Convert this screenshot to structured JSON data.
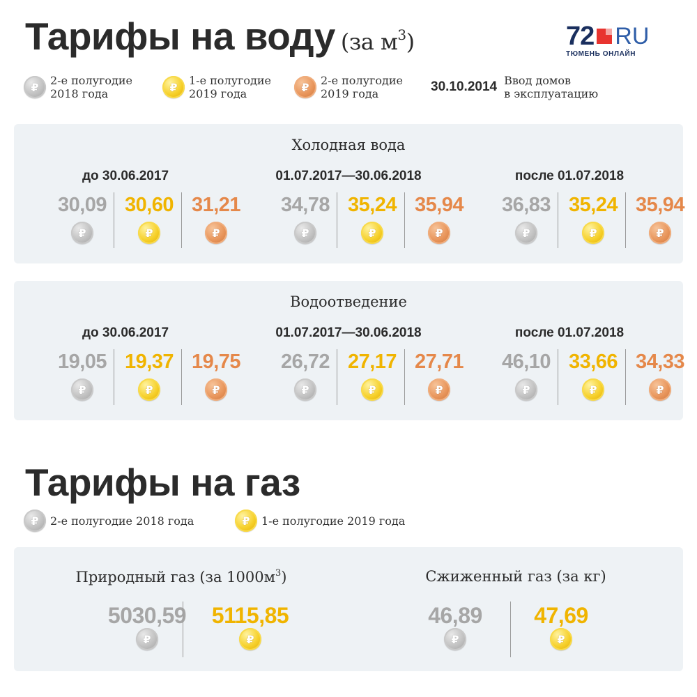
{
  "water": {
    "title": "Тарифы на воду",
    "unit": "(за м",
    "unit_sup": "3",
    "unit_close": ")"
  },
  "logo": {
    "number": "72",
    "ru": "RU",
    "subtitle": "ТЮМЕНЬ ОНЛАЙН"
  },
  "legend": {
    "silver_line1": "2-е полугодие",
    "silver_line2": "2018 года",
    "gold_line1": "1-е полугодие",
    "gold_line2": "2019 года",
    "bronze_line1": "2-е полугодие",
    "bronze_line2": "2019 года",
    "date": "30.10.2014",
    "date_line1": "Ввод домов",
    "date_line2": "в эксплуатацию"
  },
  "coin_glyph": "₽",
  "periods": [
    "до 30.06.2017",
    "01.07.2017—30.06.2018",
    "после 01.07.2018"
  ],
  "cold_water": {
    "title": "Холодная вода",
    "values": [
      [
        "30,09",
        "30,60",
        "31,21"
      ],
      [
        "34,78",
        "35,24",
        "35,94"
      ],
      [
        "36,83",
        "35,24",
        "35,94"
      ]
    ]
  },
  "drainage": {
    "title": "Водоотведение",
    "values": [
      [
        "19,05",
        "19,37",
        "19,75"
      ],
      [
        "26,72",
        "27,17",
        "27,71"
      ],
      [
        "46,10",
        "33,66",
        "34,33"
      ]
    ]
  },
  "gas": {
    "title": "Тарифы на газ",
    "legend_silver": "2-е полугодие 2018 года",
    "legend_gold": "1-е полугодие 2019 года",
    "natural_title": "Природный газ (за 1000м",
    "natural_sup": "3",
    "natural_close": ")",
    "natural_values": [
      "5030,59",
      "5115,85"
    ],
    "liquefied_title": "Сжиженный газ (за кг)",
    "liquefied_values": [
      "46,89",
      "47,69"
    ]
  },
  "colors": {
    "silver": "#a6a6a6",
    "gold": "#f0b400",
    "bronze": "#e5884a",
    "panel": "#eef2f5",
    "logo_red": "#e8342f",
    "logo_navy": "#1a2f5e",
    "logo_blue": "#2f5ea8"
  }
}
